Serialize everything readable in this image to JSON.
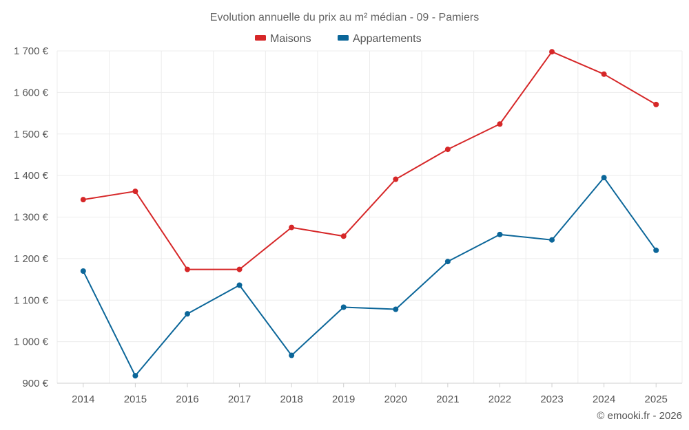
{
  "chart_data": {
    "type": "line",
    "title": "Evolution annuelle du prix au m² médian - 09 - Pamiers",
    "categories": [
      "2014",
      "2015",
      "2016",
      "2017",
      "2018",
      "2019",
      "2020",
      "2021",
      "2022",
      "2023",
      "2024",
      "2025"
    ],
    "series": [
      {
        "name": "Maisons",
        "color": "#d62728",
        "values": [
          1342,
          1362,
          1174,
          1174,
          1275,
          1254,
          1391,
          1463,
          1524,
          1698,
          1644,
          1571
        ]
      },
      {
        "name": "Appartements",
        "color": "#0b6699",
        "values": [
          1170,
          918,
          1067,
          1136,
          967,
          1083,
          1078,
          1193,
          1258,
          1245,
          1395,
          1220
        ]
      }
    ],
    "ylim": [
      900,
      1700
    ],
    "yticks": [
      900,
      1000,
      1100,
      1200,
      1300,
      1400,
      1500,
      1600,
      1700
    ],
    "ytick_labels": [
      "900 €",
      "1 000 €",
      "1 100 €",
      "1 200 €",
      "1 300 €",
      "1 400 €",
      "1 500 €",
      "1 600 €",
      "1 700 €"
    ],
    "legend": "top-center",
    "grid": true
  },
  "credit": "© emooki.fr - 2026"
}
